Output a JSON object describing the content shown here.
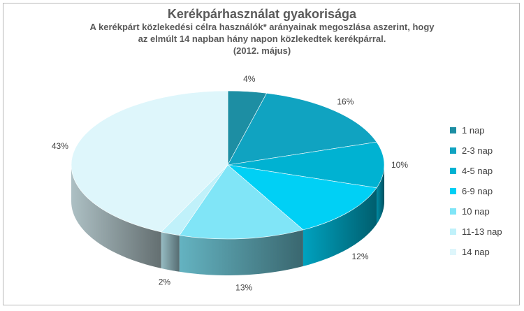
{
  "chart_data": {
    "type": "pie",
    "title": "Kerékpárhasználat gyakorisága",
    "subtitle_lines": [
      "A kerékpárt  közlekedési  célra használók*  arányainak megoszlása aszerint, hogy",
      "az elmúlt 14 napban hány napon közlekedtek kerékpárral.",
      "(2012. május)"
    ],
    "categories": [
      "1 nap",
      "2-3 nap",
      "4-5 nap",
      "6-9 nap",
      "10 nap",
      "11-13 nap",
      "14 nap"
    ],
    "values": [
      4,
      16,
      10,
      12,
      13,
      2,
      43
    ],
    "value_labels": [
      "4%",
      "16%",
      "10%",
      "12%",
      "13%",
      "2%",
      "43%"
    ],
    "colors": [
      "#1d8ea3",
      "#10a3c1",
      "#00b2d2",
      "#00d0f5",
      "#80e5f7",
      "#c0f1fa",
      "#def6fb"
    ],
    "legend_position": "right"
  }
}
